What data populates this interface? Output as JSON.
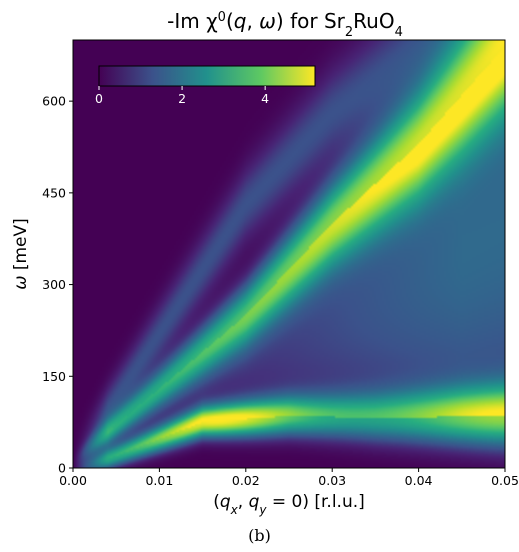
{
  "chart_data": {
    "type": "heatmap",
    "title": "-Im χ⁰(q, ω) for Sr₂RuO₄",
    "xlabel": "(qx, qy = 0) [r.l.u.]",
    "ylabel": "ω [meV]",
    "xlim": [
      0.0,
      0.05
    ],
    "ylim": [
      0,
      700
    ],
    "xticks": [
      "0.00",
      "0.01",
      "0.02",
      "0.03",
      "0.04",
      "0.05"
    ],
    "xtick_values": [
      0.0,
      0.01,
      0.02,
      0.03,
      0.04,
      0.05
    ],
    "yticks": [
      "0",
      "150",
      "300",
      "450",
      "600"
    ],
    "ytick_values": [
      0,
      150,
      300,
      450,
      600
    ],
    "colormap": "viridis",
    "colorbar": {
      "range": [
        0,
        5.2
      ],
      "ticks": [
        "0",
        "2",
        "4"
      ],
      "tick_values": [
        0,
        2,
        4
      ],
      "placement": "top-left inset"
    },
    "features": [
      {
        "name": "lower band",
        "omega_at_q": [
          [
            0.005,
            20
          ],
          [
            0.015,
            75
          ],
          [
            0.025,
            85
          ],
          [
            0.035,
            82
          ],
          [
            0.05,
            85
          ]
        ],
        "peak_intensity": 5.2
      },
      {
        "name": "main dispersive band",
        "omega_at_q": [
          [
            0.005,
            70
          ],
          [
            0.02,
            250
          ],
          [
            0.03,
            400
          ],
          [
            0.04,
            530
          ],
          [
            0.05,
            690
          ]
        ],
        "peak_intensity": 4.8
      },
      {
        "name": "upper faint band",
        "omega_at_q": [
          [
            0.01,
            220
          ],
          [
            0.02,
            430
          ],
          [
            0.03,
            580
          ],
          [
            0.04,
            690
          ]
        ],
        "peak_intensity": 1.3
      }
    ],
    "grid": false
  },
  "caption": "(b)"
}
